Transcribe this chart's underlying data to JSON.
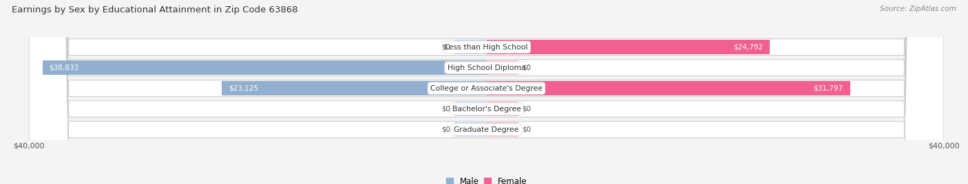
{
  "title": "Earnings by Sex by Educational Attainment in Zip Code 63868",
  "source": "Source: ZipAtlas.com",
  "categories": [
    "Less than High School",
    "High School Diploma",
    "College or Associate's Degree",
    "Bachelor's Degree",
    "Graduate Degree"
  ],
  "male_values": [
    0,
    38833,
    23125,
    0,
    0
  ],
  "female_values": [
    24792,
    0,
    31797,
    0,
    0
  ],
  "male_color": "#92afd0",
  "female_color": "#f06090",
  "male_placeholder_color": "#c8d8ec",
  "female_placeholder_color": "#f8b8cc",
  "male_label": "Male",
  "female_label": "Female",
  "axis_max": 40000,
  "bg_color": "#f4f4f4",
  "bar_bg_color": "#e4e4e4",
  "label_color_dark": "#555555",
  "label_color_white": "#ffffff"
}
